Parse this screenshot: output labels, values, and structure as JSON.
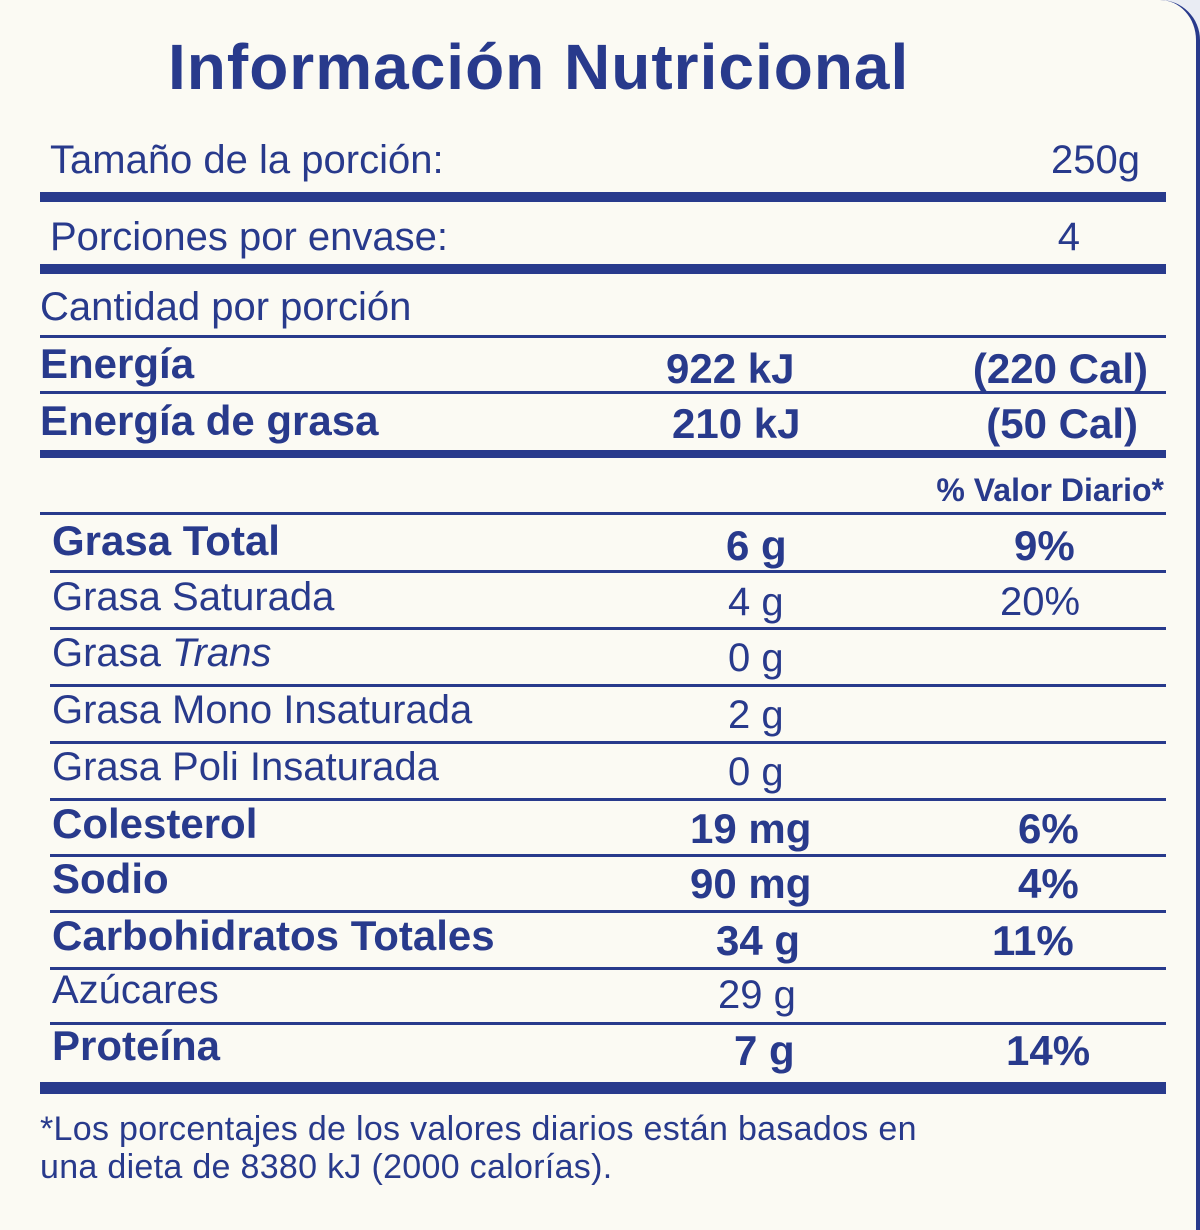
{
  "title": "Información Nutricional",
  "serving": {
    "size_label": "Tamaño de la porción:",
    "size_value": "250g",
    "per_container_label": "Porciones por envase:",
    "per_container_value": "4"
  },
  "amount_per_serving": "Cantidad por porción",
  "energy": {
    "label": "Energía",
    "kj": "922 kJ",
    "cal": "(220 Cal)"
  },
  "energy_fat": {
    "label": "Energía de grasa",
    "kj": "210 kJ",
    "cal": "(50 Cal)"
  },
  "daily_value_header": "% Valor Diario*",
  "nutrients": {
    "total_fat": {
      "label": "Grasa Total",
      "amount": "6 g",
      "dv": "9%"
    },
    "sat_fat": {
      "label": "Grasa Saturada",
      "amount": "4 g",
      "dv": "20%"
    },
    "trans_fat": {
      "label_prefix": "Grasa ",
      "label_italic": "Trans",
      "amount": "0 g"
    },
    "mono_fat": {
      "label": "Grasa Mono Insaturada",
      "amount": "2 g"
    },
    "poly_fat": {
      "label": "Grasa Poli Insaturada",
      "amount": "0 g"
    },
    "cholesterol": {
      "label": "Colesterol",
      "amount": "19 mg",
      "dv": "6%"
    },
    "sodium": {
      "label": "Sodio",
      "amount": "90 mg",
      "dv": "4%"
    },
    "carbs": {
      "label": "Carbohidratos Totales",
      "amount": "34 g",
      "dv": "11%"
    },
    "sugars": {
      "label": "Azúcares",
      "amount": "29 g"
    },
    "protein": {
      "label": "Proteína",
      "amount": "7 g",
      "dv": "14%"
    }
  },
  "footnote_line1": "*Los porcentajes de los valores diarios están basados en",
  "footnote_line2": "una dieta de 8380 kJ (2000 calorías)."
}
